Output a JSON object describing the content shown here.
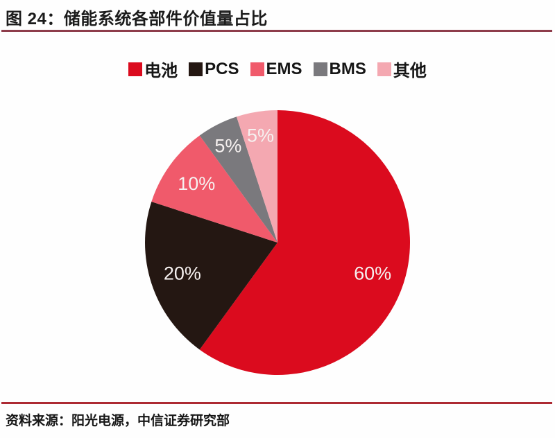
{
  "header": {
    "title": "图 24：储能系统各部件价值量占比",
    "underline_color": "#8e3d4b"
  },
  "footer": {
    "source": "资料来源：阳光电源，中信证券研究部",
    "line_color": "#ad2a33"
  },
  "chart_data": {
    "type": "pie",
    "title": "储能系统各部件价值量占比",
    "start_angle_deg_from_12_oclock": 0,
    "direction": "clockwise",
    "legend_position": "top",
    "data_label_color": "#f6f1f0",
    "slices": [
      {
        "label": "电池",
        "value": 60,
        "data_label": "60%",
        "color": "#db0b1e"
      },
      {
        "label": "PCS",
        "value": 20,
        "data_label": "20%",
        "color": "#241712"
      },
      {
        "label": "EMS",
        "value": 10,
        "data_label": "10%",
        "color": "#f05a6b"
      },
      {
        "label": "BMS",
        "value": 5,
        "data_label": "5%",
        "color": "#7a797d"
      },
      {
        "label": "其他",
        "value": 5,
        "data_label": "5%",
        "color": "#f4a8b1"
      }
    ]
  }
}
